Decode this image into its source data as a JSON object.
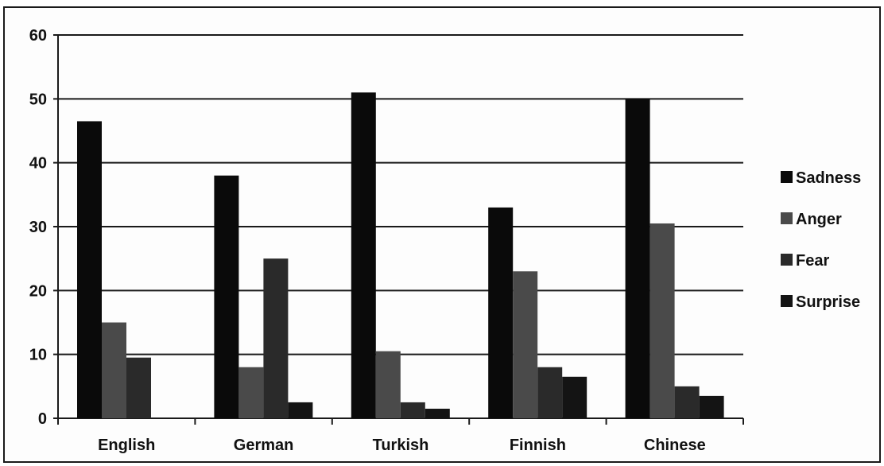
{
  "chart_data": {
    "type": "bar",
    "title": "",
    "xlabel": "",
    "ylabel": "",
    "ylim": [
      0,
      60
    ],
    "yticks": [
      0,
      10,
      20,
      30,
      40,
      50,
      60
    ],
    "grid": true,
    "legend_position": "right",
    "categories": [
      "English",
      "German",
      "Turkish",
      "Finnish",
      "Chinese"
    ],
    "series": [
      {
        "name": "Sadness",
        "color": "#0a0a0a",
        "values": [
          46.5,
          38,
          51,
          33,
          50
        ]
      },
      {
        "name": "Anger",
        "color": "#4a4a4a",
        "values": [
          15,
          8,
          10.5,
          23,
          30.5
        ]
      },
      {
        "name": "Fear",
        "color": "#2a2a2a",
        "values": [
          9.5,
          25,
          2.5,
          8,
          5
        ]
      },
      {
        "name": "Surprise",
        "color": "#141414",
        "values": [
          0,
          2.5,
          1.5,
          6.5,
          3.5
        ]
      }
    ]
  }
}
